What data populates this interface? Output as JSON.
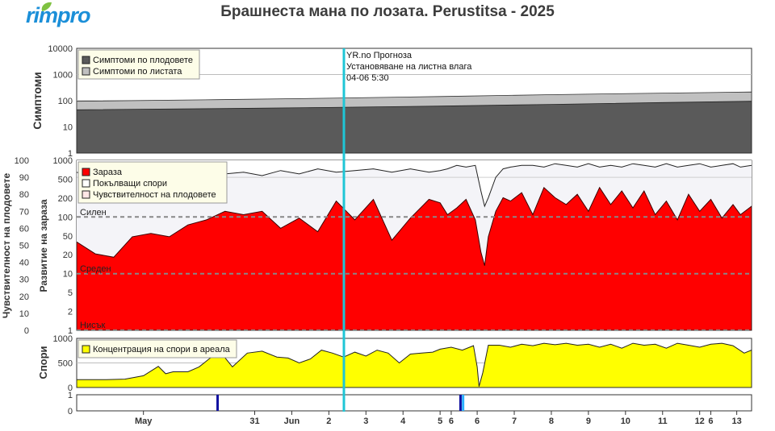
{
  "header": {
    "logo": "rimpro",
    "title": "Брашнеста мана по лозата.  Perustitsa - 2025"
  },
  "colors": {
    "fruit_symptoms": "#5a5a5a",
    "leaf_symptoms": "#c0c0c0",
    "infection": "#ff0000",
    "spores_released": "#f4f4f8",
    "spore_concentration": "#ffff00",
    "current_time_line": "#1fc6d6",
    "rain_bar": "#1010a0"
  },
  "forecast": {
    "line1": "YR.no Прогноза",
    "line2": "Установяване на листна влага",
    "line3": "04-06 5:30"
  },
  "x_axis": {
    "ticks": [
      {
        "label": "May",
        "day": -8
      },
      {
        "label": "31",
        "day": -5
      },
      {
        "label": "Jun",
        "day": -4
      },
      {
        "label": "2",
        "day": -3
      },
      {
        "label": "3",
        "day": -2
      },
      {
        "label": "4",
        "day": -1
      },
      {
        "label": "5",
        "day": 0
      },
      {
        "label": "6",
        "day": 0.3
      },
      {
        "label": "6",
        "day": 1
      },
      {
        "label": "7",
        "day": 2
      },
      {
        "label": "8",
        "day": 3
      },
      {
        "label": "9",
        "day": 4
      },
      {
        "label": "10",
        "day": 5
      },
      {
        "label": "11",
        "day": 6
      },
      {
        "label": "12",
        "day": 7
      },
      {
        "label": "6",
        "day": 7.3
      },
      {
        "label": "13",
        "day": 8
      }
    ],
    "bold": [
      "May",
      "Jun"
    ]
  },
  "chart_data": [
    {
      "type": "area",
      "panel": "symptoms",
      "ylabel": "Симптоми",
      "yscale": "log",
      "ylim": [
        1,
        10000
      ],
      "yticks": [
        "10000",
        "1000",
        "100",
        "10",
        "1"
      ],
      "legend": [
        "Симптоми по плодовете",
        "Симптоми по листата"
      ],
      "legend_position": "top-left",
      "x": [
        -9.8,
        -6,
        -3,
        0,
        3,
        6,
        8.4
      ],
      "series": [
        {
          "name": "Симптоми по плодовете",
          "values": [
            45,
            50,
            55,
            62,
            72,
            85,
            95
          ]
        },
        {
          "name": "Симптоми по листата",
          "values": [
            95,
            110,
            125,
            145,
            170,
            195,
            215
          ]
        }
      ]
    },
    {
      "type": "area",
      "panel": "infection",
      "ylabel_left": "Чувствителност на плодовете",
      "ylabel_right": "Развитие на зараза",
      "ylim": [
        0,
        100
      ],
      "yticks_left": [
        "100",
        "90",
        "80",
        "70",
        "60",
        "50",
        "40",
        "30",
        "20",
        "10",
        "0"
      ],
      "yticks_right": [
        "1000",
        "500",
        "200",
        "100",
        "50",
        "20",
        "10",
        "5",
        "2",
        "1"
      ],
      "legend": [
        "Зараза",
        "Покълващи спори",
        "Чувствителност на плодовете"
      ],
      "legend_position": "top-left",
      "risk_levels": [
        {
          "label": "Силен",
          "value": 66.7
        },
        {
          "label": "Среден",
          "value": 33.3
        },
        {
          "label": "Нисък",
          "value": 0
        }
      ],
      "x": [
        -9.8,
        -9.3,
        -8.8,
        -8.3,
        -7.8,
        -7.3,
        -6.8,
        -6.3,
        -5.8,
        -5.3,
        -4.8,
        -4.3,
        -3.8,
        -3.3,
        -2.8,
        -2.3,
        -1.8,
        -1.3,
        -0.8,
        -0.3,
        0,
        0.2,
        0.45,
        0.7,
        0.95,
        1.1,
        1.2,
        1.3,
        1.5,
        1.7,
        1.9,
        2.2,
        2.5,
        2.8,
        3.1,
        3.4,
        3.7,
        4.0,
        4.3,
        4.6,
        4.9,
        5.2,
        5.5,
        5.8,
        6.1,
        6.4,
        6.7,
        7.0,
        7.3,
        7.6,
        7.9,
        8.1,
        8.4
      ],
      "series": [
        {
          "name": "Зараза",
          "values": [
            52,
            45,
            43,
            55,
            57,
            55,
            62,
            65,
            70,
            68,
            70,
            60,
            66,
            58,
            76,
            65,
            77,
            53,
            66,
            77,
            75,
            68,
            72,
            77,
            65,
            46,
            38,
            55,
            70,
            78,
            76,
            81,
            68,
            84,
            78,
            74,
            80,
            70,
            84,
            74,
            82,
            72,
            82,
            68,
            76,
            65,
            80,
            70,
            77,
            66,
            74,
            68,
            73
          ]
        },
        {
          "name": "Покълващи спори",
          "values": [
            93,
            90,
            91,
            93,
            92,
            94,
            92,
            95,
            92,
            93,
            91,
            94,
            92,
            95,
            93,
            94,
            95,
            93,
            95,
            93,
            94,
            95,
            97,
            96,
            97,
            82,
            73,
            78,
            90,
            95,
            96,
            97,
            97,
            96,
            98,
            97,
            96,
            98,
            96,
            97,
            96,
            98,
            97,
            96,
            98,
            96,
            97,
            98,
            96,
            97,
            98,
            96,
            97
          ]
        }
      ]
    },
    {
      "type": "area",
      "panel": "spores",
      "ylabel": "Спори",
      "ylim": [
        0,
        1000
      ],
      "yticks": [
        "1000",
        "500",
        "0"
      ],
      "legend": [
        "Концентрация на спори в ареала"
      ],
      "legend_position": "top-left",
      "x": [
        -9.8,
        -9.0,
        -8.5,
        -8.0,
        -7.6,
        -7.4,
        -7.2,
        -6.8,
        -6.5,
        -6.2,
        -5.9,
        -5.6,
        -5.2,
        -4.8,
        -4.4,
        -4.1,
        -3.8,
        -3.5,
        -3.2,
        -2.9,
        -2.6,
        -2.3,
        -2.0,
        -1.7,
        -1.4,
        -1.1,
        -0.8,
        -0.5,
        -0.2,
        0,
        0.3,
        0.6,
        0.9,
        1.0,
        1.05,
        1.15,
        1.3,
        1.6,
        1.9,
        2.2,
        2.5,
        2.8,
        3.1,
        3.4,
        3.7,
        4.0,
        4.3,
        4.6,
        4.9,
        5.2,
        5.5,
        5.8,
        6.1,
        6.4,
        6.7,
        7.0,
        7.3,
        7.6,
        7.9,
        8.2,
        8.4
      ],
      "series": [
        {
          "name": "Концентрация на спори в ареала",
          "values": [
            160,
            160,
            170,
            240,
            430,
            280,
            320,
            320,
            420,
            600,
            700,
            420,
            700,
            740,
            620,
            600,
            500,
            580,
            760,
            700,
            620,
            720,
            640,
            760,
            700,
            500,
            680,
            700,
            720,
            780,
            820,
            760,
            850,
            420,
            20,
            300,
            860,
            860,
            820,
            880,
            850,
            900,
            870,
            900,
            860,
            880,
            820,
            880,
            800,
            900,
            860,
            880,
            800,
            900,
            860,
            820,
            880,
            900,
            850,
            700,
            760
          ]
        }
      ]
    },
    {
      "type": "bar",
      "panel": "rain",
      "ylim": [
        0,
        1
      ],
      "yticks": [
        "1",
        "0"
      ],
      "x": [
        -6.0,
        0.55,
        0.62
      ],
      "values": [
        1,
        1,
        1
      ]
    }
  ]
}
